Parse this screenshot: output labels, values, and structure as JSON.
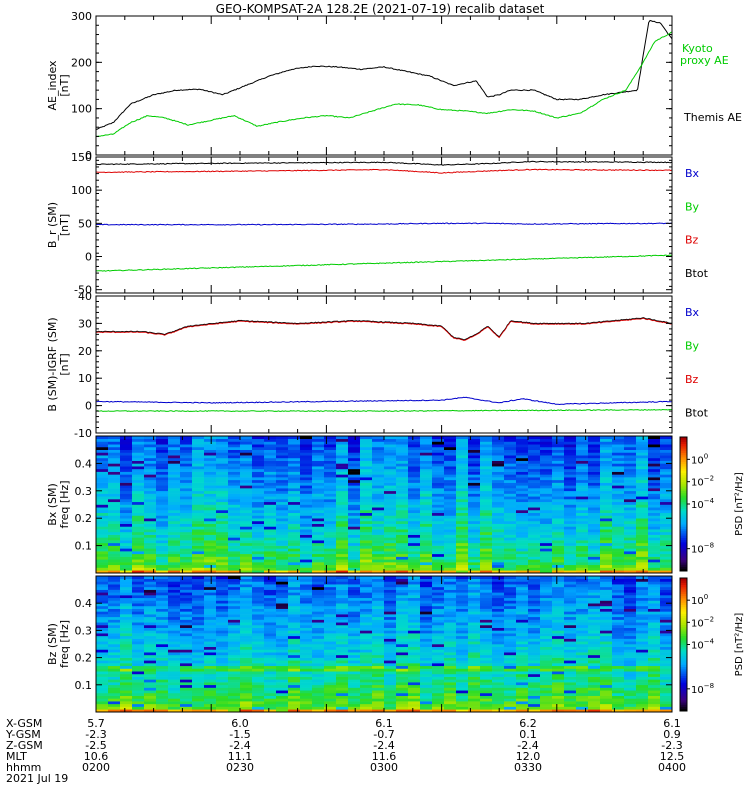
{
  "chart_data": {
    "title": "GEO-KOMPSAT-2A 128.2E (2021-07-19) recalib dataset",
    "type": "line",
    "x_range_hhmm": [
      "0200",
      "0400"
    ],
    "colors": {
      "black": "#000000",
      "red": "#dd0000",
      "green": "#00cc00",
      "blue": "#0000cc"
    },
    "panels": [
      {
        "id": "ae",
        "type": "line",
        "ylabel_lines": [
          "AE_index",
          "[nT]"
        ],
        "ylim": [
          0,
          300
        ],
        "yticks": [
          0,
          100,
          200,
          300
        ],
        "legend": [
          {
            "label": "Kyoto proxy AE",
            "label_lines": [
              "Kyoto",
              "proxy AE"
            ],
            "color": "green"
          },
          {
            "label": "Themis AE",
            "label_lines": [
              "Themis AE"
            ],
            "color": "black"
          }
        ],
        "series": [
          {
            "name": "Themis AE",
            "color": "black",
            "x": [
              0.0,
              0.03,
              0.06,
              0.1,
              0.14,
              0.18,
              0.22,
              0.26,
              0.3,
              0.34,
              0.38,
              0.42,
              0.46,
              0.5,
              0.54,
              0.58,
              0.62,
              0.66,
              0.68,
              0.7,
              0.72,
              0.76,
              0.8,
              0.84,
              0.88,
              0.91,
              0.94,
              0.96,
              0.98,
              1.0
            ],
            "y": [
              55,
              70,
              110,
              130,
              140,
              142,
              130,
              150,
              170,
              185,
              192,
              190,
              185,
              190,
              180,
              170,
              150,
              160,
              125,
              130,
              140,
              140,
              120,
              120,
              130,
              135,
              140,
              290,
              285,
              250
            ]
          },
          {
            "name": "Kyoto proxy AE",
            "color": "green",
            "x": [
              0.0,
              0.03,
              0.06,
              0.09,
              0.12,
              0.16,
              0.2,
              0.24,
              0.28,
              0.32,
              0.36,
              0.4,
              0.44,
              0.48,
              0.52,
              0.56,
              0.6,
              0.64,
              0.68,
              0.72,
              0.76,
              0.8,
              0.84,
              0.88,
              0.92,
              0.95,
              0.97,
              1.0
            ],
            "y": [
              40,
              45,
              70,
              85,
              80,
              65,
              75,
              85,
              62,
              72,
              80,
              85,
              80,
              95,
              110,
              108,
              98,
              95,
              90,
              98,
              95,
              80,
              90,
              120,
              140,
              200,
              245,
              265
            ]
          }
        ]
      },
      {
        "id": "b",
        "type": "line",
        "ylabel_lines": [
          "B_r (SM)",
          "[nT]"
        ],
        "ylim": [
          -55,
          150
        ],
        "yticks": [
          -50,
          0,
          50,
          100,
          150
        ],
        "legend": [
          {
            "label": "Bx",
            "label_lines": [
              "Bx"
            ],
            "color": "blue"
          },
          {
            "label": "By",
            "label_lines": [
              "By"
            ],
            "color": "green"
          },
          {
            "label": "Bz",
            "label_lines": [
              "Bz"
            ],
            "color": "red"
          },
          {
            "label": "Btot",
            "label_lines": [
              "Btot"
            ],
            "color": "black"
          }
        ],
        "series": [
          {
            "name": "Btot",
            "color": "black",
            "x": [
              0,
              0.3,
              0.5,
              0.6,
              0.68,
              0.75,
              1.0
            ],
            "y": [
              139,
              141,
              142,
              138,
              140,
              143,
              142
            ]
          },
          {
            "name": "Bz",
            "color": "red",
            "x": [
              0,
              0.3,
              0.5,
              0.6,
              0.68,
              0.75,
              1.0
            ],
            "y": [
              127,
              129,
              131,
              126,
              129,
              131,
              130
            ]
          },
          {
            "name": "Bx",
            "color": "blue",
            "x": [
              0,
              0.3,
              0.5,
              0.6,
              0.68,
              0.75,
              1.0
            ],
            "y": [
              48,
              48,
              49,
              50,
              50,
              49,
              50
            ]
          },
          {
            "name": "By",
            "color": "green",
            "x": [
              0,
              0.5,
              1.0
            ],
            "y": [
              -22,
              -10,
              2
            ]
          }
        ]
      },
      {
        "id": "db",
        "type": "line",
        "ylabel_lines": [
          "B (SM)-IGRF (SM)",
          "[nT]"
        ],
        "ylim": [
          -10,
          40
        ],
        "yticks": [
          -10,
          0,
          10,
          20,
          30,
          40
        ],
        "legend": [
          {
            "label": "Bx",
            "label_lines": [
              "Bx"
            ],
            "color": "blue"
          },
          {
            "label": "By",
            "label_lines": [
              "By"
            ],
            "color": "green"
          },
          {
            "label": "Bz",
            "label_lines": [
              "Bz"
            ],
            "color": "red"
          },
          {
            "label": "Btot",
            "label_lines": [
              "Btot"
            ],
            "color": "black"
          }
        ],
        "series": [
          {
            "name": "Btot",
            "color": "black",
            "x": [
              0,
              0.08,
              0.12,
              0.16,
              0.25,
              0.35,
              0.45,
              0.55,
              0.6,
              0.62,
              0.64,
              0.66,
              0.68,
              0.7,
              0.72,
              0.76,
              0.85,
              0.95,
              1.0
            ],
            "y": [
              27,
              27,
              26,
              29,
              31,
              30,
              31,
              30,
              29,
              25,
              24,
              26,
              29,
              25,
              31,
              30,
              30,
              32,
              30
            ]
          },
          {
            "name": "Bx",
            "color": "blue",
            "x": [
              0,
              0.2,
              0.4,
              0.6,
              0.64,
              0.7,
              0.74,
              0.8,
              1.0
            ],
            "y": [
              1.5,
              1,
              1.5,
              2,
              3,
              1,
              2.5,
              0.5,
              1.5
            ]
          },
          {
            "name": "By",
            "color": "green",
            "x": [
              0,
              0.5,
              1.0
            ],
            "y": [
              -2,
              -2,
              -1.5
            ]
          }
        ]
      },
      {
        "id": "bx_spec",
        "type": "heatmap",
        "ylabel_lines": [
          "Bx (SM)",
          "freq  [Hz]"
        ],
        "ylim": [
          0,
          0.5
        ],
        "yticks": [
          0.1,
          0.2,
          0.3,
          0.4
        ],
        "yticklabels": [
          "0.1",
          "0.2",
          "0.3",
          "0.4"
        ]
      },
      {
        "id": "bz_spec",
        "type": "heatmap",
        "ylabel_lines": [
          "Bz (SM)",
          "freq  [Hz]"
        ],
        "ylim": [
          0,
          0.5
        ],
        "yticks": [
          0.1,
          0.2,
          0.3,
          0.4
        ],
        "yticklabels": [
          "0.1",
          "0.2",
          "0.3",
          "0.4"
        ]
      }
    ],
    "colorbar": {
      "label": "PSD [nT²/Hz]",
      "ticks": [
        {
          "base": "10",
          "exp": "0"
        },
        {
          "base": "10",
          "exp": "−2"
        },
        {
          "base": "10",
          "exp": "−4"
        },
        {
          "base": "10",
          "exp": "−8"
        }
      ],
      "log_range": [
        -10,
        2
      ]
    },
    "x_axis_table": {
      "row_labels": [
        "X-GSM",
        "Y-GSM",
        "Z-GSM",
        "MLT",
        "hhmm"
      ],
      "columns": [
        [
          "5.7",
          "-2.3",
          "-2.5",
          "10.6",
          "0200"
        ],
        [
          "6.0",
          "-1.5",
          "-2.4",
          "11.1",
          "0230"
        ],
        [
          "6.1",
          "-0.7",
          "-2.4",
          "11.6",
          "0300"
        ],
        [
          "6.2",
          "0.1",
          "-2.4",
          "12.0",
          "0330"
        ],
        [
          "6.1",
          "0.9",
          "-2.3",
          "12.5",
          "0400"
        ]
      ],
      "date": "2021 Jul 19"
    }
  }
}
